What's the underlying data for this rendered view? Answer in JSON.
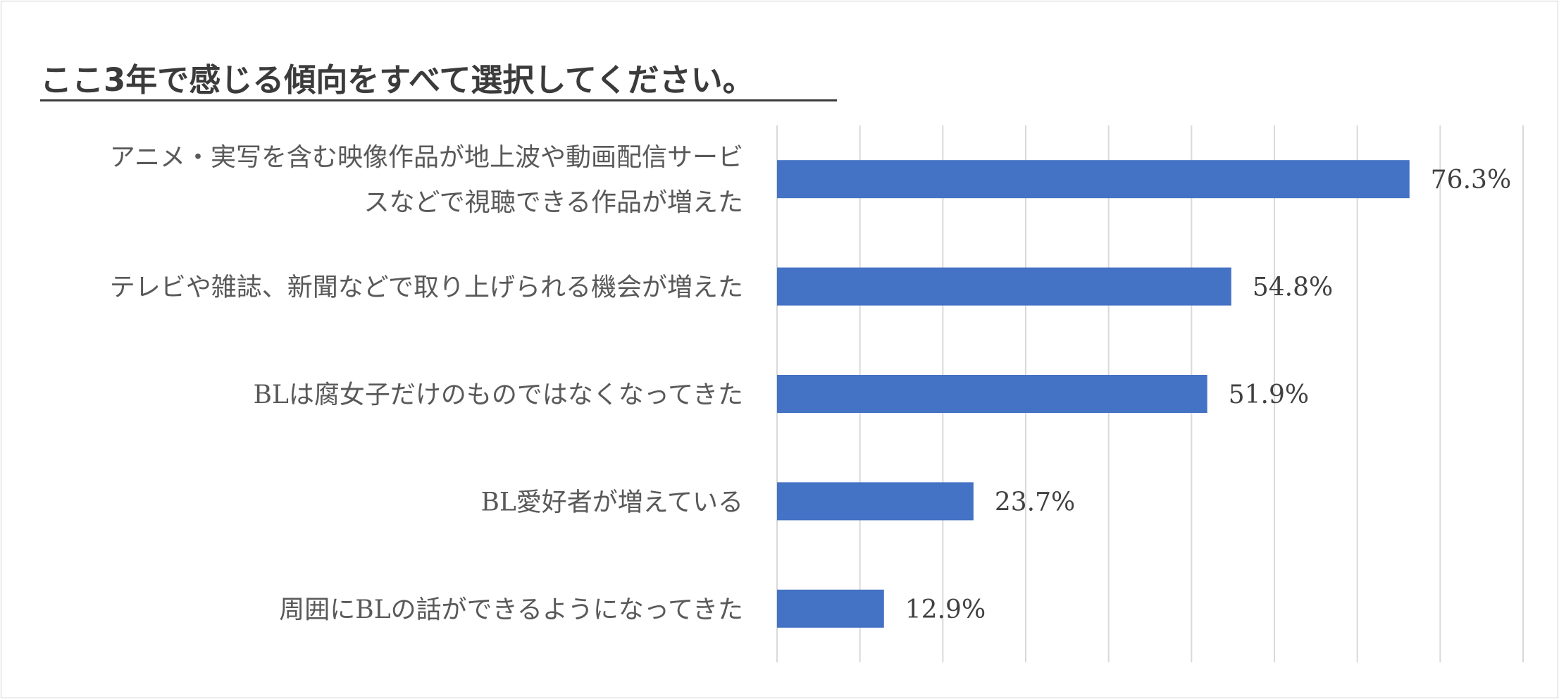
{
  "title": "ここ3年で感じる傾向をすべて選択してください。",
  "chart_data": {
    "type": "bar",
    "orientation": "horizontal",
    "categories": [
      [
        "アニメ・実写を含む映像作品が地上波や動画配信サービ",
        "スなどで視聴できる作品が増えた"
      ],
      [
        "テレビや雑誌、新聞などで取り上げられる機会が増えた"
      ],
      [
        "BLは腐女子だけのものではなくなってきた"
      ],
      [
        "BL愛好者が増えている"
      ],
      [
        "周囲にBLの話ができるようになってきた"
      ]
    ],
    "values": [
      76.3,
      54.8,
      51.9,
      23.7,
      12.9
    ],
    "value_labels": [
      "76.3%",
      "54.8%",
      "51.9%",
      "23.7%",
      "12.9%"
    ],
    "xlim": [
      0,
      90
    ],
    "grid": true,
    "bar_color": "#4472c4",
    "grid_color": "#d9d9d9"
  }
}
